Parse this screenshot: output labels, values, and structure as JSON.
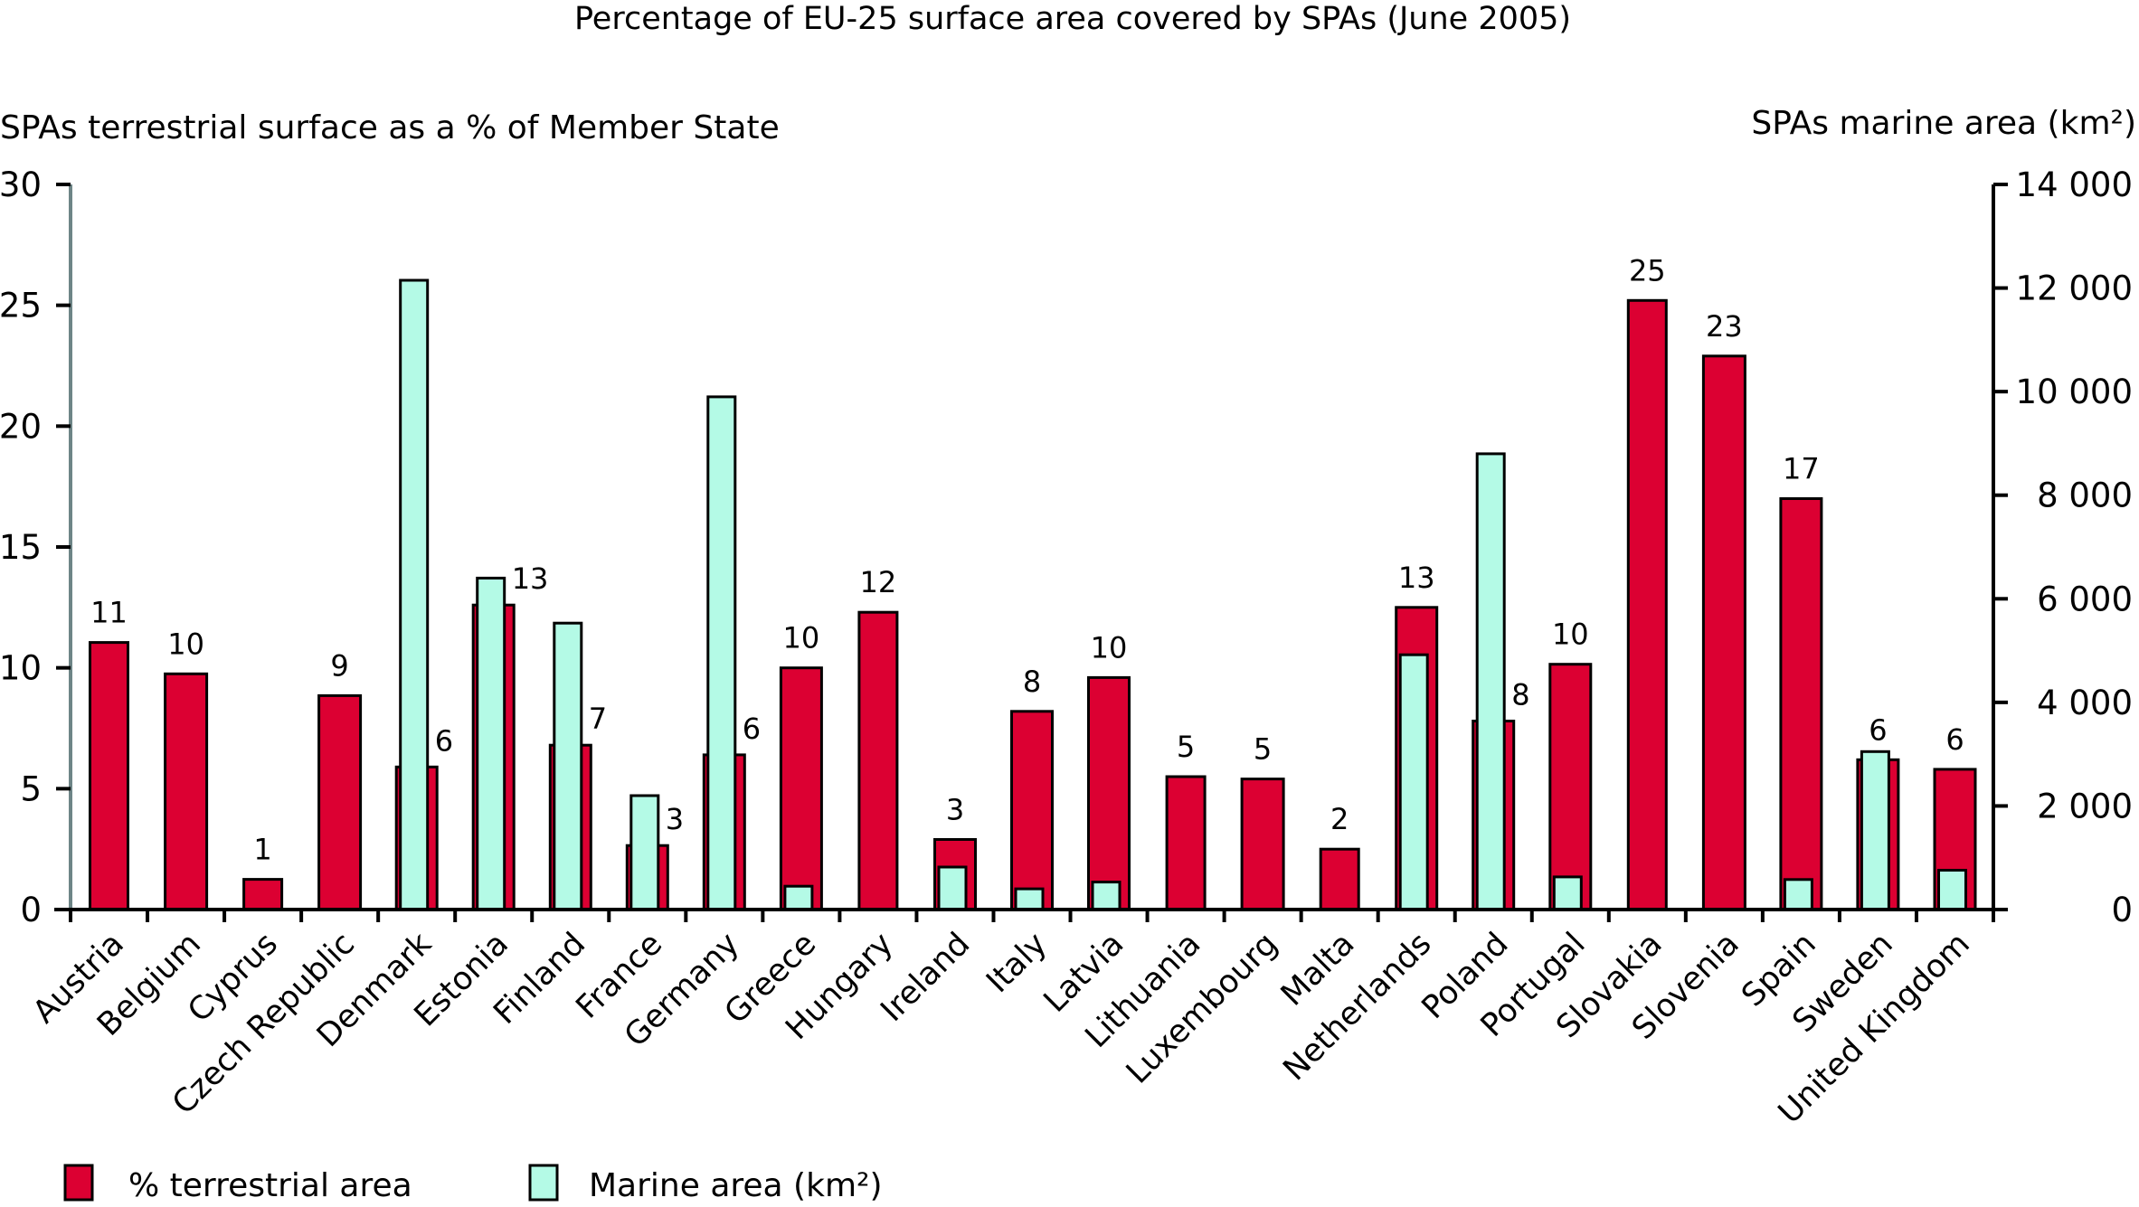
{
  "chart_data": {
    "type": "bar",
    "title": "Percentage of EU-25 surface area covered by SPAs (June 2005)",
    "ylabel_left": "SPAs terrestrial surface as a % of Member State",
    "ylabel_right": "SPAs marine area (km²)",
    "xlabel": "",
    "ylim_left": [
      0,
      30
    ],
    "ylim_right": [
      0,
      14000
    ],
    "yticks_left": [
      0,
      5,
      10,
      15,
      20,
      25,
      30
    ],
    "yticks_left_labels": [
      "0",
      "5",
      "10",
      "15",
      "20",
      "25",
      "30"
    ],
    "yticks_right": [
      0,
      2000,
      4000,
      6000,
      8000,
      10000,
      12000,
      14000
    ],
    "yticks_right_labels": [
      "0",
      "2 000",
      "4 000",
      "6 000",
      "8 000",
      "10 000",
      "12 000",
      "14 000"
    ],
    "grid": false,
    "legend_position": "bottom-left",
    "categories": [
      "Austria",
      "Belgium",
      "Cyprus",
      "Czech Republic",
      "Denmark",
      "Estonia",
      "Finland",
      "France",
      "Germany",
      "Greece",
      "Hungary",
      "Ireland",
      "Italy",
      "Latvia",
      "Lithuania",
      "Luxembourg",
      "Malta",
      "Netherlands",
      "Poland",
      "Portugal",
      "Slovakia",
      "Slovenia",
      "Spain",
      "Sweden",
      "United Kingdom"
    ],
    "series": [
      {
        "name": "% terrestrial area",
        "axis": "left",
        "color": "#DC0032",
        "values": [
          11.05,
          9.75,
          1.25,
          8.85,
          5.9,
          12.6,
          6.8,
          2.65,
          6.4,
          10.0,
          12.3,
          2.9,
          8.2,
          9.6,
          5.5,
          5.4,
          2.5,
          12.5,
          7.8,
          10.15,
          25.2,
          22.9,
          17.0,
          6.2,
          5.8
        ],
        "data_labels": [
          "11",
          "10",
          "1",
          "9",
          "6",
          "13",
          "7",
          "3",
          "6",
          "10",
          "12",
          "3",
          "8",
          "10",
          "5",
          "5",
          "2",
          "13",
          "8",
          "10",
          "25",
          "23",
          "17",
          "6",
          "6"
        ]
      },
      {
        "name": "Marine area (km²)",
        "axis": "right",
        "color": "#B4FAE6",
        "values": [
          0,
          0,
          0,
          0,
          12150,
          6400,
          5530,
          2200,
          9900,
          450,
          0,
          820,
          400,
          530,
          0,
          0,
          0,
          4920,
          8800,
          630,
          0,
          0,
          580,
          3050,
          760
        ]
      }
    ],
    "legend": [
      {
        "label": "% terrestrial area",
        "color": "#DC0032"
      },
      {
        "label": "Marine area (km²)",
        "color": "#B4FAE6"
      }
    ]
  }
}
